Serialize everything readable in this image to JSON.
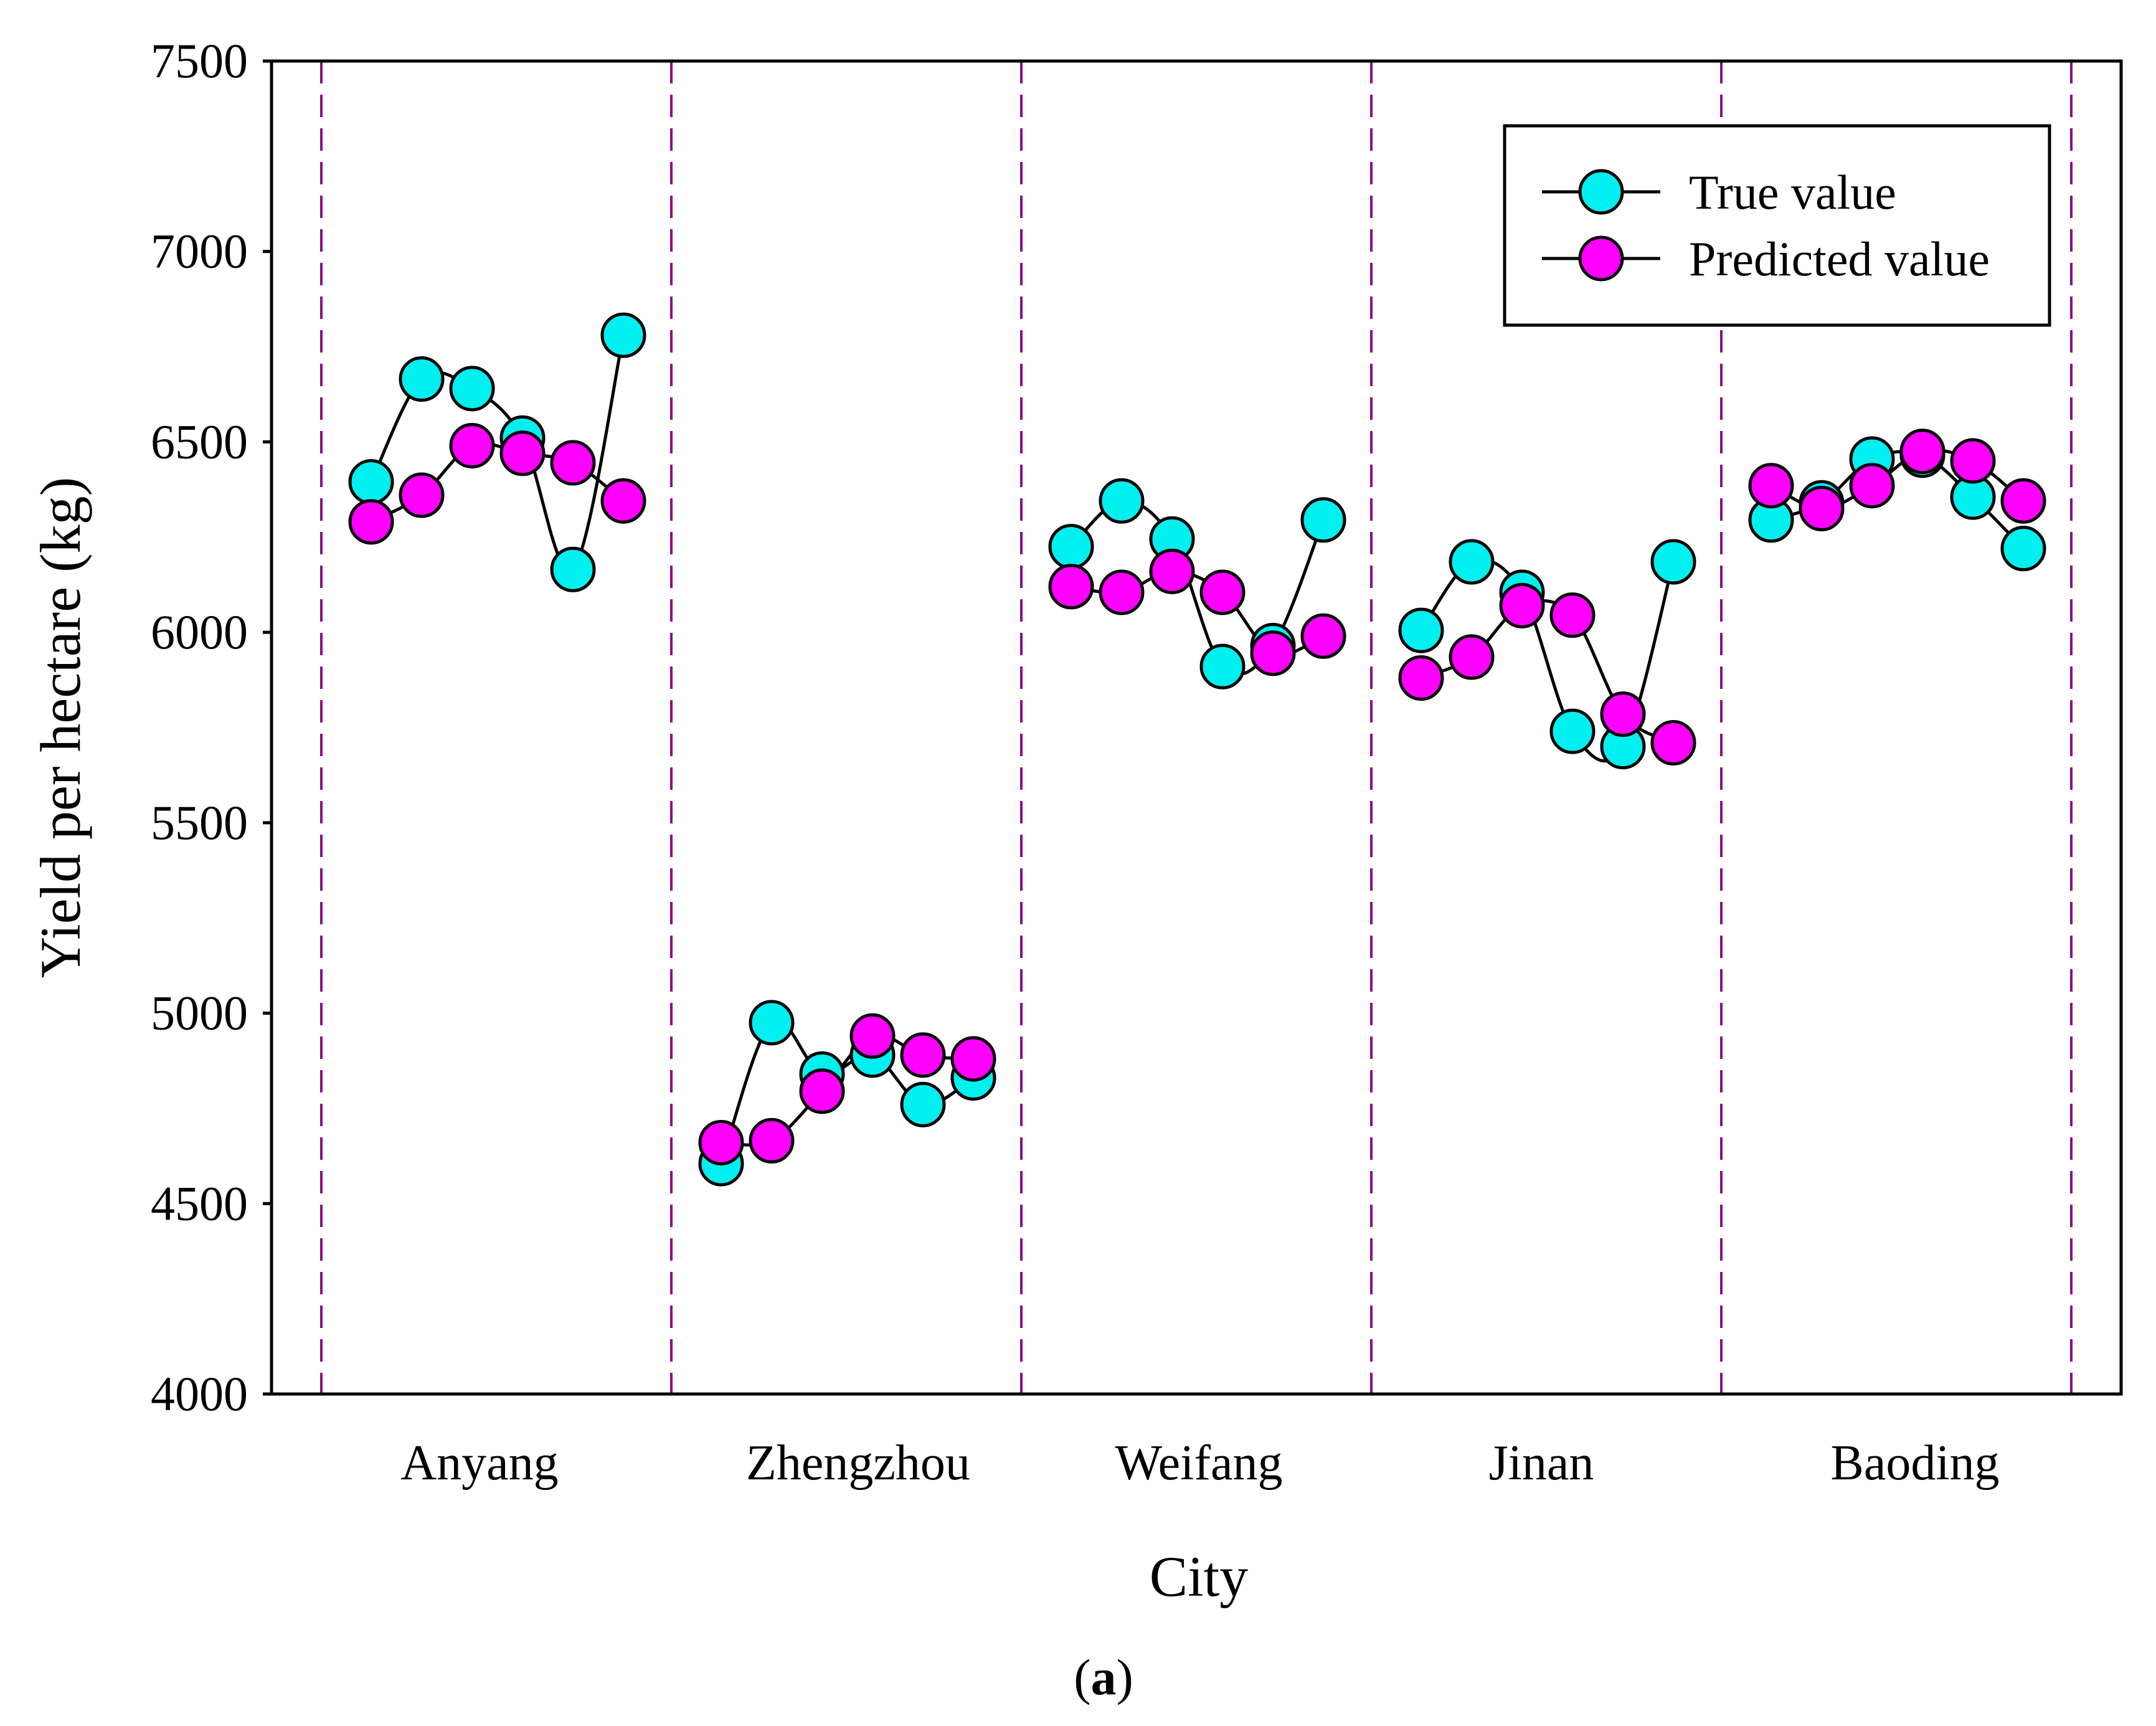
{
  "chart_data": {
    "type": "line",
    "title": "",
    "xlabel": "City",
    "ylabel": "Yield per hectare (kg)",
    "ylim": [
      4000,
      7500
    ],
    "yticks": [
      4000,
      4500,
      5000,
      5500,
      6000,
      6500,
      7000,
      7500
    ],
    "yticks_text": [
      "4000",
      "4500",
      "5000",
      "5500",
      "6000",
      "6500",
      "7000",
      "7500"
    ],
    "categories": [
      "Anyang",
      "Zhengzhou",
      "Weifang",
      "Jinan",
      "Baoding"
    ],
    "points_per_category": 6,
    "legend_position": "top-right",
    "series": [
      {
        "name": "True value",
        "color": "#00f0f0",
        "values": [
          [
            6395,
            6665,
            6640,
            6510,
            6165,
            6780
          ],
          [
            4605,
            4975,
            4840,
            4890,
            4760,
            4830
          ],
          [
            6225,
            6345,
            6245,
            5910,
            5965,
            6295
          ],
          [
            6005,
            6185,
            6105,
            5740,
            5700,
            6185
          ],
          [
            6295,
            6340,
            6455,
            6465,
            6355,
            6220
          ]
        ]
      },
      {
        "name": "Predicted value",
        "color": "#ff00ff",
        "values": [
          [
            6290,
            6360,
            6490,
            6470,
            6445,
            6345
          ],
          [
            4660,
            4665,
            4795,
            4940,
            4890,
            4880
          ],
          [
            6120,
            6105,
            6160,
            6105,
            5945,
            5990
          ],
          [
            5880,
            5935,
            6070,
            6045,
            5785,
            5710
          ],
          [
            6385,
            6325,
            6385,
            6475,
            6450,
            6345
          ]
        ]
      }
    ],
    "divider_color": "#8b0a8b",
    "caption": "(a)",
    "caption_parts": {
      "open": "(",
      "letter": "a",
      "close": ")"
    }
  }
}
